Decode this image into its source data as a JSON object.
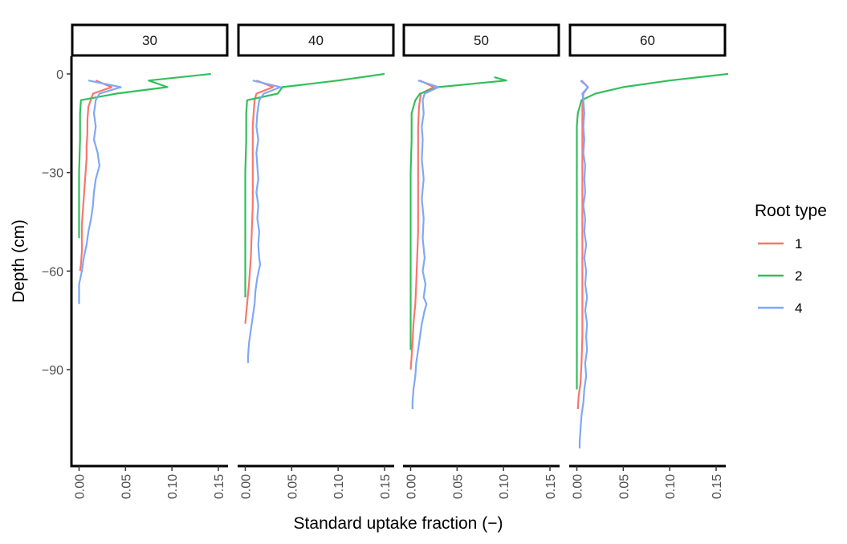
{
  "chart_data": {
    "type": "line",
    "facet_variable_values": [
      "30",
      "40",
      "50",
      "60"
    ],
    "xlabel": "Standard uptake fraction (−)",
    "ylabel": "Depth (cm)",
    "xlim": [
      -0.005,
      0.165
    ],
    "ylim": [
      -119,
      6
    ],
    "x_ticks": [
      0.0,
      0.05,
      0.1,
      0.15
    ],
    "x_tick_labels": [
      "0.00",
      "0.05",
      "0.10",
      "0.15"
    ],
    "y_ticks": [
      0,
      -30,
      -60,
      -90
    ],
    "y_tick_labels": [
      "0",
      "−30",
      "−60",
      "−90"
    ],
    "grid": false,
    "legend": {
      "title": "Root type",
      "position": "right",
      "entries": [
        {
          "label": "1",
          "color": "#F8766D"
        },
        {
          "label": "2",
          "color": "#33BE5C"
        },
        {
          "label": "4",
          "color": "#7FA8F5"
        }
      ]
    },
    "panels": [
      {
        "label": "30",
        "series": [
          {
            "name": "1",
            "color": "#F8766D",
            "points": [
              [
                0.018,
                -2
              ],
              [
                0.035,
                -4
              ],
              [
                0.015,
                -6
              ],
              [
                0.01,
                -10
              ],
              [
                0.009,
                -14
              ],
              [
                0.009,
                -18
              ],
              [
                0.008,
                -22
              ],
              [
                0.008,
                -26
              ],
              [
                0.007,
                -30
              ],
              [
                0.006,
                -34
              ],
              [
                0.005,
                -38
              ],
              [
                0.004,
                -42
              ],
              [
                0.003,
                -46
              ],
              [
                0.003,
                -50
              ],
              [
                0.003,
                -54
              ],
              [
                0.002,
                -58
              ],
              [
                0.001,
                -60
              ]
            ]
          },
          {
            "name": "2",
            "color": "#33BE5C",
            "points": [
              [
                0.142,
                0
              ],
              [
                0.075,
                -2
              ],
              [
                0.095,
                -4
              ],
              [
                0.04,
                -6
              ],
              [
                0.002,
                -8
              ],
              [
                0.001,
                -12
              ],
              [
                0.001,
                -20
              ],
              [
                0.0,
                -30
              ],
              [
                0.0,
                -40
              ],
              [
                0.0,
                -50
              ]
            ]
          },
          {
            "name": "4",
            "color": "#7FA8F5",
            "points": [
              [
                0.01,
                -2
              ],
              [
                0.045,
                -4
              ],
              [
                0.022,
                -6
              ],
              [
                0.018,
                -8
              ],
              [
                0.016,
                -12
              ],
              [
                0.018,
                -16
              ],
              [
                0.016,
                -20
              ],
              [
                0.02,
                -24
              ],
              [
                0.022,
                -28
              ],
              [
                0.018,
                -32
              ],
              [
                0.016,
                -36
              ],
              [
                0.015,
                -40
              ],
              [
                0.013,
                -44
              ],
              [
                0.01,
                -48
              ],
              [
                0.008,
                -52
              ],
              [
                0.005,
                -56
              ],
              [
                0.003,
                -60
              ],
              [
                0.0,
                -64
              ],
              [
                0.0,
                -70
              ]
            ]
          }
        ]
      },
      {
        "label": "40",
        "series": [
          {
            "name": "1",
            "color": "#F8766D",
            "points": [
              [
                0.012,
                -2
              ],
              [
                0.03,
                -4
              ],
              [
                0.012,
                -6
              ],
              [
                0.01,
                -8
              ],
              [
                0.009,
                -12
              ],
              [
                0.008,
                -16
              ],
              [
                0.008,
                -20
              ],
              [
                0.008,
                -30
              ],
              [
                0.008,
                -40
              ],
              [
                0.007,
                -48
              ],
              [
                0.006,
                -56
              ],
              [
                0.004,
                -64
              ],
              [
                0.002,
                -70
              ],
              [
                0.0,
                -76
              ]
            ]
          },
          {
            "name": "2",
            "color": "#33BE5C",
            "points": [
              [
                0.15,
                0
              ],
              [
                0.1,
                -2
              ],
              [
                0.04,
                -4
              ],
              [
                0.035,
                -6
              ],
              [
                0.002,
                -8
              ],
              [
                0.001,
                -12
              ],
              [
                0.001,
                -20
              ],
              [
                0.0,
                -30
              ],
              [
                0.0,
                -40
              ],
              [
                0.0,
                -50
              ],
              [
                0.0,
                -60
              ],
              [
                0.0,
                -68
              ]
            ]
          },
          {
            "name": "4",
            "color": "#7FA8F5",
            "points": [
              [
                0.008,
                -2
              ],
              [
                0.038,
                -4
              ],
              [
                0.02,
                -6
              ],
              [
                0.015,
                -8
              ],
              [
                0.013,
                -12
              ],
              [
                0.012,
                -16
              ],
              [
                0.014,
                -20
              ],
              [
                0.012,
                -24
              ],
              [
                0.013,
                -28
              ],
              [
                0.014,
                -32
              ],
              [
                0.012,
                -36
              ],
              [
                0.014,
                -40
              ],
              [
                0.013,
                -44
              ],
              [
                0.015,
                -48
              ],
              [
                0.014,
                -52
              ],
              [
                0.015,
                -56
              ],
              [
                0.016,
                -58
              ],
              [
                0.013,
                -62
              ],
              [
                0.011,
                -66
              ],
              [
                0.01,
                -70
              ],
              [
                0.008,
                -74
              ],
              [
                0.006,
                -78
              ],
              [
                0.004,
                -82
              ],
              [
                0.003,
                -86
              ],
              [
                0.003,
                -88
              ]
            ]
          }
        ]
      },
      {
        "label": "50",
        "series": [
          {
            "name": "1",
            "color": "#F8766D",
            "points": [
              [
                0.01,
                -2
              ],
              [
                0.025,
                -4
              ],
              [
                0.011,
                -6
              ],
              [
                0.009,
                -10
              ],
              [
                0.008,
                -16
              ],
              [
                0.008,
                -24
              ],
              [
                0.008,
                -32
              ],
              [
                0.008,
                -40
              ],
              [
                0.008,
                -48
              ],
              [
                0.007,
                -56
              ],
              [
                0.006,
                -64
              ],
              [
                0.005,
                -70
              ],
              [
                0.003,
                -76
              ],
              [
                0.002,
                -82
              ],
              [
                0.001,
                -86
              ],
              [
                0.0,
                -90
              ]
            ]
          },
          {
            "name": "2",
            "color": "#33BE5C",
            "points": [
              [
                0.09,
                -1
              ],
              [
                0.103,
                -2
              ],
              [
                0.03,
                -4
              ],
              [
                0.01,
                -6
              ],
              [
                0.005,
                -8
              ],
              [
                0.001,
                -12
              ],
              [
                0.001,
                -20
              ],
              [
                0.0,
                -30
              ],
              [
                0.0,
                -40
              ],
              [
                0.0,
                -50
              ],
              [
                0.0,
                -60
              ],
              [
                0.0,
                -70
              ],
              [
                0.0,
                -80
              ],
              [
                0.0,
                -84
              ]
            ]
          },
          {
            "name": "4",
            "color": "#7FA8F5",
            "points": [
              [
                0.008,
                -2
              ],
              [
                0.03,
                -4
              ],
              [
                0.015,
                -6
              ],
              [
                0.013,
                -8
              ],
              [
                0.014,
                -12
              ],
              [
                0.012,
                -16
              ],
              [
                0.013,
                -20
              ],
              [
                0.012,
                -26
              ],
              [
                0.014,
                -32
              ],
              [
                0.012,
                -38
              ],
              [
                0.014,
                -44
              ],
              [
                0.013,
                -50
              ],
              [
                0.015,
                -56
              ],
              [
                0.013,
                -60
              ],
              [
                0.016,
                -64
              ],
              [
                0.014,
                -68
              ],
              [
                0.017,
                -70
              ],
              [
                0.015,
                -72
              ],
              [
                0.012,
                -76
              ],
              [
                0.01,
                -80
              ],
              [
                0.008,
                -84
              ],
              [
                0.006,
                -88
              ],
              [
                0.005,
                -92
              ],
              [
                0.003,
                -96
              ],
              [
                0.002,
                -100
              ],
              [
                0.002,
                -102
              ]
            ]
          }
        ]
      },
      {
        "label": "60",
        "series": [
          {
            "name": "1",
            "color": "#F8766D",
            "points": [
              [
                0.005,
                -2
              ],
              [
                0.012,
                -4
              ],
              [
                0.007,
                -6
              ],
              [
                0.006,
                -10
              ],
              [
                0.006,
                -20
              ],
              [
                0.006,
                -30
              ],
              [
                0.006,
                -40
              ],
              [
                0.006,
                -50
              ],
              [
                0.006,
                -60
              ],
              [
                0.006,
                -70
              ],
              [
                0.006,
                -80
              ],
              [
                0.005,
                -88
              ],
              [
                0.004,
                -94
              ],
              [
                0.002,
                -98
              ],
              [
                0.001,
                -102
              ]
            ]
          },
          {
            "name": "2",
            "color": "#33BE5C",
            "points": [
              [
                0.163,
                0
              ],
              [
                0.1,
                -2
              ],
              [
                0.05,
                -4
              ],
              [
                0.02,
                -6
              ],
              [
                0.005,
                -8
              ],
              [
                0.001,
                -12
              ],
              [
                0.0,
                -16
              ],
              [
                0.0,
                -30
              ],
              [
                0.0,
                -50
              ],
              [
                0.0,
                -70
              ],
              [
                0.0,
                -90
              ],
              [
                0.0,
                -96
              ]
            ]
          },
          {
            "name": "4",
            "color": "#7FA8F5",
            "points": [
              [
                0.004,
                -2
              ],
              [
                0.012,
                -4
              ],
              [
                0.006,
                -6
              ],
              [
                0.007,
                -8
              ],
              [
                0.008,
                -12
              ],
              [
                0.007,
                -16
              ],
              [
                0.008,
                -20
              ],
              [
                0.007,
                -24
              ],
              [
                0.009,
                -28
              ],
              [
                0.008,
                -32
              ],
              [
                0.009,
                -36
              ],
              [
                0.007,
                -40
              ],
              [
                0.009,
                -44
              ],
              [
                0.008,
                -48
              ],
              [
                0.01,
                -52
              ],
              [
                0.008,
                -56
              ],
              [
                0.01,
                -60
              ],
              [
                0.009,
                -64
              ],
              [
                0.011,
                -68
              ],
              [
                0.009,
                -72
              ],
              [
                0.011,
                -76
              ],
              [
                0.01,
                -80
              ],
              [
                0.011,
                -84
              ],
              [
                0.009,
                -88
              ],
              [
                0.01,
                -92
              ],
              [
                0.008,
                -96
              ],
              [
                0.007,
                -100
              ],
              [
                0.005,
                -104
              ],
              [
                0.004,
                -108
              ],
              [
                0.003,
                -112
              ],
              [
                0.003,
                -114
              ]
            ]
          }
        ]
      }
    ]
  }
}
